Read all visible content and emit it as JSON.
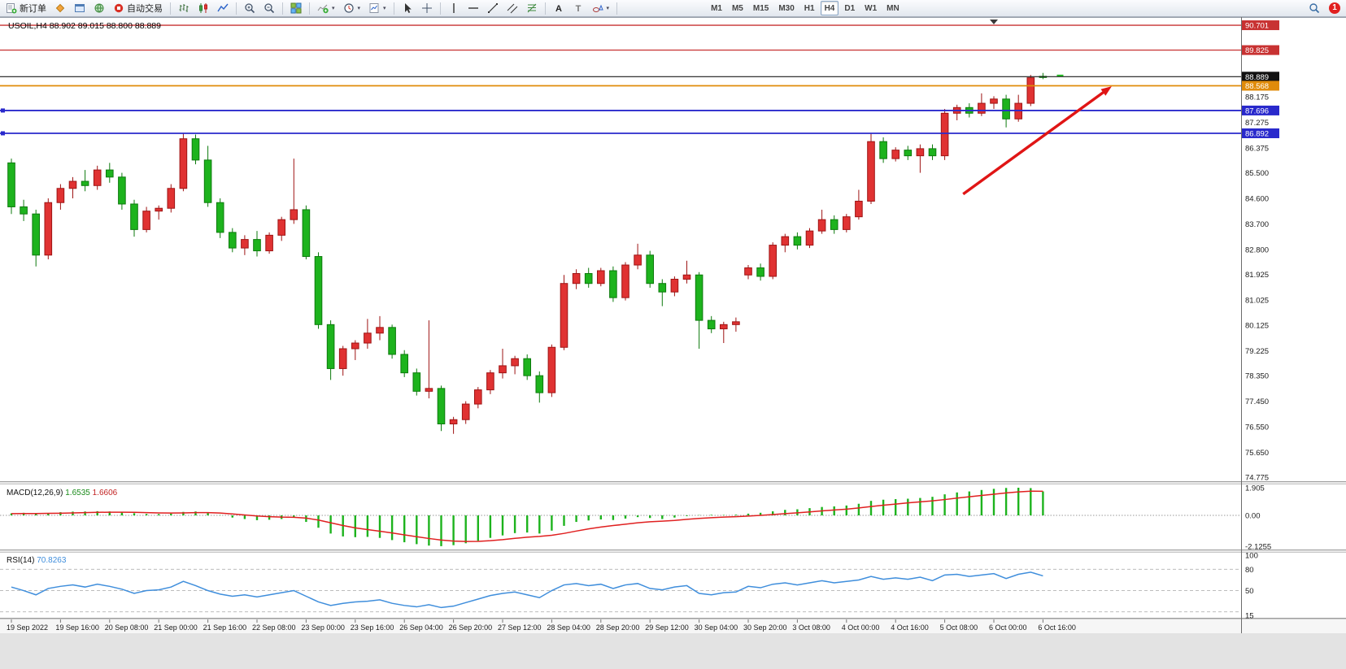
{
  "toolbar": {
    "groups": [
      {
        "name": "standard",
        "items": [
          {
            "name": "new-order-button",
            "label": "新订单",
            "icon": "neworder"
          },
          {
            "name": "chart-profile-button",
            "icon": "diamond"
          },
          {
            "name": "new-chart-window-button",
            "icon": "window"
          },
          {
            "name": "navigator-button",
            "icon": "globe"
          },
          {
            "name": "autotrading-button",
            "label": "自动交易",
            "icon": "power"
          }
        ]
      },
      {
        "name": "charts",
        "items": [
          {
            "name": "bar-chart-button",
            "icon": "bars"
          },
          {
            "name": "candlestick-chart-button",
            "icon": "candles"
          },
          {
            "name": "line-chart-button",
            "icon": "linechart"
          },
          {
            "sep": true
          },
          {
            "name": "zoom-in-button",
            "icon": "zoomin"
          },
          {
            "name": "zoom-out-button",
            "icon": "zoomout"
          },
          {
            "sep": true
          },
          {
            "name": "tile-windows-button",
            "icon": "tile"
          },
          {
            "sep": true
          },
          {
            "name": "indicators-button",
            "icon": "indicators",
            "caret": true
          },
          {
            "name": "periods-button",
            "icon": "clock",
            "caret": true
          },
          {
            "name": "templates-button",
            "icon": "template",
            "caret": true
          }
        ]
      },
      {
        "name": "line-studies",
        "items": [
          {
            "name": "cursor-button",
            "icon": "cursor"
          },
          {
            "name": "crosshair-button",
            "icon": "crosshair"
          },
          {
            "sep": true
          },
          {
            "name": "vertical-line-button",
            "icon": "vline"
          },
          {
            "name": "horizontal-line-button",
            "icon": "hline"
          },
          {
            "name": "trendline-button",
            "icon": "trendline"
          },
          {
            "name": "equidistant-channel-button",
            "icon": "channel"
          },
          {
            "name": "fibonacci-button",
            "icon": "fibo"
          },
          {
            "sep": true
          },
          {
            "name": "text-button",
            "icon": "textA"
          },
          {
            "name": "text-label-button",
            "icon": "textT"
          },
          {
            "name": "arrows-button",
            "icon": "shapes",
            "caret": true
          }
        ]
      },
      {
        "name": "timeframes",
        "items": [
          {
            "name": "timeframe-m1",
            "label": "M1"
          },
          {
            "name": "timeframe-m5",
            "label": "M5"
          },
          {
            "name": "timeframe-m15",
            "label": "M15"
          },
          {
            "name": "timeframe-m30",
            "label": "M30"
          },
          {
            "name": "timeframe-h1",
            "label": "H1"
          },
          {
            "name": "timeframe-h4",
            "label": "H4",
            "active": true
          },
          {
            "name": "timeframe-d1",
            "label": "D1"
          },
          {
            "name": "timeframe-w1",
            "label": "W1"
          },
          {
            "name": "timeframe-mn",
            "label": "MN"
          }
        ]
      }
    ],
    "right": [
      {
        "name": "search-button",
        "icon": "search"
      },
      {
        "name": "notification-badge",
        "label": "1"
      }
    ]
  },
  "chart_data": {
    "type": "candlestick",
    "symbol": "USOIL",
    "period": "H4",
    "title": "USOIL,H4  88.902 89.015 88.800 88.889",
    "visible_high": 90.96,
    "visible_low": 74.63,
    "colors": {
      "up": "#e03232",
      "up_stroke": "#9e1414",
      "down": "#1db31d",
      "down_stroke": "#0d7a0d",
      "bid_line": "#1a1a1a",
      "rsi_line": "#3f8edc",
      "macd_signal": "#e02020",
      "macd_hist": "#1db31d",
      "arrow": "#e01515"
    },
    "candles": [
      [
        85.85,
        86.0,
        84.05,
        84.3
      ],
      [
        84.3,
        84.55,
        83.8,
        84.05
      ],
      [
        84.05,
        84.2,
        82.2,
        82.6
      ],
      [
        82.6,
        84.6,
        82.45,
        84.45
      ],
      [
        84.45,
        85.1,
        84.2,
        84.95
      ],
      [
        84.95,
        85.35,
        84.6,
        85.2
      ],
      [
        85.2,
        85.6,
        84.85,
        85.05
      ],
      [
        85.05,
        85.75,
        84.9,
        85.6
      ],
      [
        85.6,
        85.85,
        85.15,
        85.35
      ],
      [
        85.35,
        85.5,
        84.2,
        84.4
      ],
      [
        84.4,
        84.55,
        83.25,
        83.5
      ],
      [
        83.5,
        84.3,
        83.4,
        84.15
      ],
      [
        84.15,
        84.35,
        83.85,
        84.25
      ],
      [
        84.25,
        85.1,
        84.1,
        84.95
      ],
      [
        84.95,
        86.9,
        84.85,
        86.7
      ],
      [
        86.7,
        86.85,
        85.8,
        85.95
      ],
      [
        85.95,
        86.45,
        84.3,
        84.45
      ],
      [
        84.45,
        84.6,
        83.2,
        83.4
      ],
      [
        83.4,
        83.55,
        82.7,
        82.85
      ],
      [
        82.85,
        83.3,
        82.6,
        83.15
      ],
      [
        83.15,
        83.45,
        82.55,
        82.75
      ],
      [
        82.75,
        83.4,
        82.65,
        83.3
      ],
      [
        83.3,
        83.95,
        83.1,
        83.85
      ],
      [
        83.85,
        86.0,
        83.7,
        84.2
      ],
      [
        84.2,
        84.35,
        82.45,
        82.55
      ],
      [
        82.55,
        82.7,
        80.0,
        80.15
      ],
      [
        80.15,
        80.3,
        78.2,
        78.6
      ],
      [
        78.6,
        79.4,
        78.35,
        79.3
      ],
      [
        79.3,
        79.6,
        78.9,
        79.5
      ],
      [
        79.5,
        80.35,
        79.3,
        79.85
      ],
      [
        79.85,
        80.45,
        79.6,
        80.05
      ],
      [
        80.05,
        80.15,
        78.95,
        79.1
      ],
      [
        79.1,
        79.25,
        78.3,
        78.45
      ],
      [
        78.45,
        78.6,
        77.65,
        77.8
      ],
      [
        77.8,
        80.3,
        77.55,
        77.9
      ],
      [
        77.9,
        78.0,
        76.4,
        76.65
      ],
      [
        76.65,
        76.9,
        76.3,
        76.8
      ],
      [
        76.8,
        77.45,
        76.65,
        77.35
      ],
      [
        77.35,
        77.95,
        77.2,
        77.85
      ],
      [
        77.85,
        78.55,
        77.7,
        78.45
      ],
      [
        78.45,
        79.3,
        78.25,
        78.7
      ],
      [
        78.7,
        79.05,
        78.4,
        78.95
      ],
      [
        78.95,
        79.1,
        78.2,
        78.35
      ],
      [
        78.35,
        78.5,
        77.4,
        77.75
      ],
      [
        77.75,
        79.45,
        77.6,
        79.35
      ],
      [
        79.35,
        81.9,
        79.25,
        81.6
      ],
      [
        81.6,
        82.1,
        81.4,
        81.95
      ],
      [
        81.95,
        82.15,
        81.45,
        81.6
      ],
      [
        81.6,
        82.15,
        81.5,
        82.05
      ],
      [
        82.05,
        82.2,
        80.95,
        81.1
      ],
      [
        81.1,
        82.35,
        81.0,
        82.25
      ],
      [
        82.25,
        83.0,
        82.1,
        82.6
      ],
      [
        82.6,
        82.75,
        81.45,
        81.6
      ],
      [
        81.6,
        81.75,
        80.8,
        81.3
      ],
      [
        81.3,
        81.85,
        81.15,
        81.75
      ],
      [
        81.75,
        82.4,
        81.6,
        81.9
      ],
      [
        81.9,
        82.0,
        79.3,
        80.3
      ],
      [
        80.3,
        80.45,
        79.85,
        80.0
      ],
      [
        80.0,
        80.25,
        79.5,
        80.15
      ],
      [
        80.15,
        80.4,
        79.9,
        80.25
      ],
      [
        81.9,
        82.25,
        81.75,
        82.15
      ],
      [
        82.15,
        82.3,
        81.7,
        81.85
      ],
      [
        81.85,
        83.05,
        81.75,
        82.95
      ],
      [
        82.95,
        83.35,
        82.7,
        83.25
      ],
      [
        83.25,
        83.4,
        82.8,
        82.95
      ],
      [
        82.95,
        83.55,
        82.85,
        83.45
      ],
      [
        83.45,
        84.2,
        83.35,
        83.85
      ],
      [
        83.85,
        84.0,
        83.35,
        83.5
      ],
      [
        83.5,
        84.05,
        83.4,
        83.95
      ],
      [
        83.95,
        84.9,
        83.85,
        84.5
      ],
      [
        84.5,
        86.9,
        84.4,
        86.6
      ],
      [
        86.6,
        86.75,
        85.85,
        86.0
      ],
      [
        86.0,
        86.4,
        85.9,
        86.3
      ],
      [
        86.3,
        86.45,
        85.95,
        86.1
      ],
      [
        86.1,
        86.5,
        85.5,
        86.35
      ],
      [
        86.35,
        86.5,
        85.95,
        86.1
      ],
      [
        86.1,
        87.75,
        85.95,
        87.6
      ],
      [
        87.6,
        87.9,
        87.35,
        87.8
      ],
      [
        87.8,
        87.95,
        87.45,
        87.6
      ],
      [
        87.6,
        88.3,
        87.5,
        87.95
      ],
      [
        87.95,
        88.2,
        87.75,
        88.1
      ],
      [
        88.1,
        88.25,
        87.1,
        87.4
      ],
      [
        87.4,
        88.25,
        87.3,
        87.95
      ],
      [
        87.95,
        88.95,
        87.85,
        88.85
      ],
      [
        88.9,
        89.02,
        88.8,
        88.89
      ]
    ],
    "bar_labels_every": 4,
    "time_labels": [
      "19 Sep 2022",
      "19 Sep 16:00",
      "20 Sep 08:00",
      "21 Sep 00:00",
      "21 Sep 16:00",
      "22 Sep 08:00",
      "23 Sep 00:00",
      "23 Sep 16:00",
      "26 Sep 04:00",
      "26 Sep 20:00",
      "27 Sep 12:00",
      "28 Sep 04:00",
      "28 Sep 20:00",
      "29 Sep 12:00",
      "30 Sep 04:00",
      "30 Sep 20:00",
      "3 Oct 08:00",
      "4 Oct 00:00",
      "4 Oct 16:00",
      "5 Oct 08:00",
      "6 Oct 00:00",
      "6 Oct 16:00"
    ],
    "price_axis": {
      "ticks": [
        "88.175",
        "87.275",
        "86.375",
        "85.500",
        "84.600",
        "83.700",
        "82.800",
        "81.925",
        "81.025",
        "80.125",
        "79.225",
        "78.350",
        "77.450",
        "76.550",
        "75.650",
        "74.775"
      ],
      "badges": [
        {
          "text": "90.701",
          "color": "#c83232"
        },
        {
          "text": "89.825",
          "color": "#c83232"
        },
        {
          "text": "88.889",
          "color": "#111111"
        },
        {
          "text": "88.568",
          "color": "#e08b0a"
        },
        {
          "text": "87.696",
          "color": "#2929cc"
        },
        {
          "text": "86.892",
          "color": "#2929cc"
        }
      ]
    },
    "level_lines": [
      {
        "price": 90.701,
        "color": "#c83232",
        "width": 1.3,
        "handles": false
      },
      {
        "price": 89.825,
        "color": "#c83232",
        "width": 1.3,
        "handles": false
      },
      {
        "price": 88.568,
        "color": "#e08b0a",
        "width": 1.8,
        "handles": false
      },
      {
        "price": 87.696,
        "color": "#2929cc",
        "width": 1.8,
        "handles": true
      },
      {
        "price": 86.892,
        "color": "#2929cc",
        "width": 1.8,
        "handles": true
      }
    ],
    "bid_price": 88.889,
    "ask_marker_price": 88.93,
    "arrow": {
      "from_bar": 77.5,
      "from_price": 84.75,
      "to_bar": 89.6,
      "to_price": 88.55
    },
    "shift_marker_bar": 80,
    "macd": {
      "label": "MACD(12,26,9)",
      "value_main": "1.6535",
      "value_signal": "1.6606",
      "scale_max": 1.905,
      "scale_min": -2.1255,
      "axis_labels": [
        {
          "v": 1.905,
          "t": "1.905"
        },
        {
          "v": 0,
          "t": "0.00"
        },
        {
          "v": -2.1255,
          "t": "-2.1255"
        }
      ],
      "histogram": [
        0.14,
        0.18,
        0.1,
        0.16,
        0.22,
        0.26,
        0.27,
        0.29,
        0.27,
        0.22,
        0.15,
        0.1,
        0.09,
        0.13,
        0.24,
        0.27,
        0.18,
        0.02,
        -0.15,
        -0.25,
        -0.33,
        -0.3,
        -0.25,
        -0.16,
        -0.45,
        -0.85,
        -1.25,
        -1.45,
        -1.5,
        -1.48,
        -1.55,
        -1.7,
        -1.85,
        -1.98,
        -2.08,
        -2.12,
        -2.05,
        -1.92,
        -1.75,
        -1.55,
        -1.38,
        -1.22,
        -1.18,
        -1.25,
        -1.05,
        -0.72,
        -0.45,
        -0.35,
        -0.28,
        -0.32,
        -0.22,
        -0.12,
        -0.18,
        -0.25,
        -0.15,
        -0.05,
        0.02,
        0.04,
        0.03,
        0.05,
        0.12,
        0.18,
        0.28,
        0.38,
        0.42,
        0.5,
        0.58,
        0.62,
        0.68,
        0.8,
        1.0,
        1.08,
        1.12,
        1.15,
        1.2,
        1.28,
        1.45,
        1.58,
        1.65,
        1.75,
        1.83,
        1.89,
        1.905,
        1.88,
        1.65
      ],
      "signal": [
        0.12,
        0.13,
        0.13,
        0.14,
        0.15,
        0.17,
        0.19,
        0.21,
        0.22,
        0.22,
        0.21,
        0.19,
        0.17,
        0.16,
        0.17,
        0.19,
        0.19,
        0.16,
        0.1,
        0.03,
        -0.04,
        -0.09,
        -0.12,
        -0.13,
        -0.19,
        -0.32,
        -0.51,
        -0.7,
        -0.86,
        -0.98,
        -1.09,
        -1.21,
        -1.34,
        -1.47,
        -1.59,
        -1.7,
        -1.77,
        -1.8,
        -1.79,
        -1.74,
        -1.67,
        -1.58,
        -1.5,
        -1.45,
        -1.37,
        -1.24,
        -1.08,
        -0.93,
        -0.8,
        -0.7,
        -0.61,
        -0.51,
        -0.44,
        -0.4,
        -0.35,
        -0.27,
        -0.21,
        -0.16,
        -0.12,
        -0.09,
        -0.05,
        0.0,
        0.06,
        0.12,
        0.18,
        0.24,
        0.31,
        0.37,
        0.43,
        0.51,
        0.61,
        0.7,
        0.78,
        0.86,
        0.93,
        1.0,
        1.09,
        1.19,
        1.28,
        1.37,
        1.46,
        1.55,
        1.62,
        1.67,
        1.66
      ]
    },
    "rsi": {
      "label": "RSI(14)",
      "value": "70.8263",
      "scale_max": 100,
      "scale_min": 15,
      "axis_labels": [
        {
          "v": 100,
          "t": "100"
        },
        {
          "v": 80,
          "t": "80"
        },
        {
          "v": 50,
          "t": "50"
        },
        {
          "v": 15,
          "t": "15"
        }
      ],
      "levels": [
        80,
        50,
        20
      ],
      "series": [
        55,
        50,
        44,
        53,
        56,
        58,
        55,
        59,
        56,
        52,
        46,
        50,
        51,
        55,
        63,
        57,
        50,
        45,
        42,
        44,
        41,
        44,
        47,
        50,
        42,
        34,
        29,
        32,
        34,
        35,
        37,
        32,
        29,
        27,
        30,
        26,
        28,
        33,
        38,
        43,
        46,
        48,
        44,
        40,
        50,
        58,
        60,
        57,
        59,
        53,
        58,
        60,
        53,
        51,
        55,
        57,
        46,
        44,
        47,
        48,
        56,
        54,
        59,
        61,
        58,
        61,
        64,
        61,
        63,
        65,
        70,
        66,
        68,
        66,
        69,
        64,
        72,
        73,
        70,
        72,
        74,
        67,
        73,
        76,
        70.8
      ]
    }
  }
}
